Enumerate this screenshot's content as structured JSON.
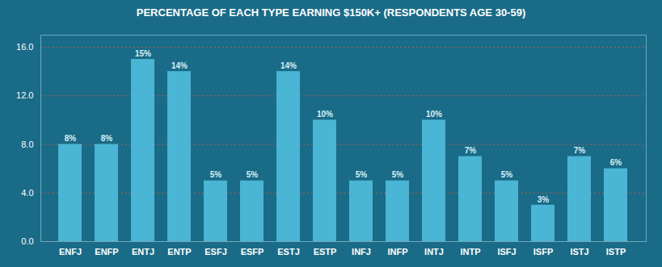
{
  "chart_data": {
    "type": "bar",
    "title": "PERCENTAGE OF EACH TYPE EARNING $150K+ (RESPONDENTS AGE 30-59)",
    "categories": [
      "ENFJ",
      "ENFP",
      "ENTJ",
      "ENTP",
      "ESFJ",
      "ESFP",
      "ESTJ",
      "ESTP",
      "INFJ",
      "INFP",
      "INTJ",
      "INTP",
      "ISFJ",
      "ISFP",
      "ISTJ",
      "ISTP"
    ],
    "values": [
      8,
      8,
      15,
      14,
      5,
      5,
      14,
      10,
      5,
      5,
      10,
      7,
      5,
      3,
      7,
      6
    ],
    "value_labels": [
      "8%",
      "8%",
      "15%",
      "14%",
      "5%",
      "5%",
      "14%",
      "10%",
      "5%",
      "5%",
      "10%",
      "7%",
      "5%",
      "3%",
      "7%",
      "6%"
    ],
    "data_labels": true,
    "color": "#4ab5d4",
    "ylim": [
      0,
      17
    ],
    "yticks": [
      {
        "value": 0,
        "label": "0.0"
      },
      {
        "value": 4,
        "label": "4.0"
      },
      {
        "value": 8,
        "label": "8.0"
      },
      {
        "value": 12,
        "label": "12.0"
      },
      {
        "value": 16,
        "label": "16.0"
      }
    ],
    "grid": true
  }
}
